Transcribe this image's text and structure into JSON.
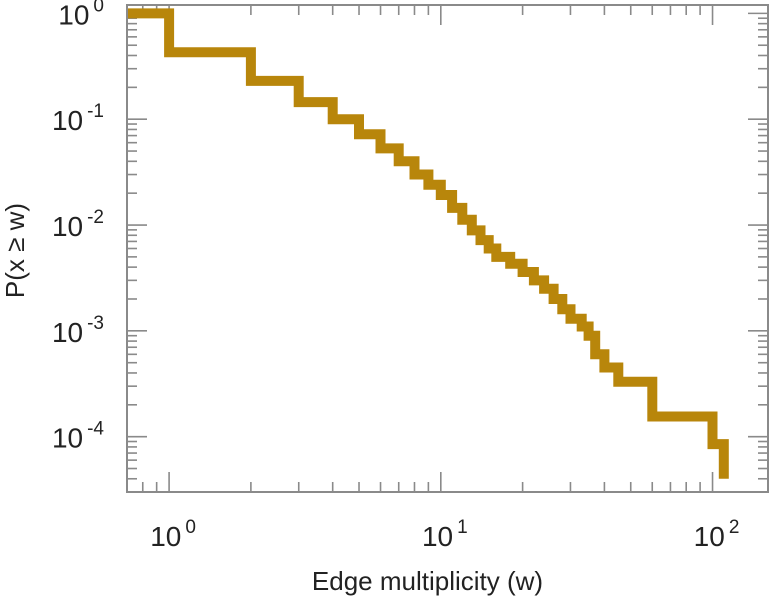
{
  "chart_data": {
    "type": "line",
    "step": true,
    "xlabel": "Edge multiplicity (w)",
    "ylabel": "P(x ≥ w)",
    "xscale": "log",
    "yscale": "log",
    "xlim": [
      0.7,
      160
    ],
    "ylim": [
      3e-05,
      1.2
    ],
    "grid": false,
    "legend": "none",
    "x_ticks": [
      {
        "value": 1,
        "base": "10",
        "exp": "0"
      },
      {
        "value": 10,
        "base": "10",
        "exp": "1"
      },
      {
        "value": 100,
        "base": "10",
        "exp": "2"
      }
    ],
    "y_ticks": [
      {
        "value": 1,
        "base": "10",
        "exp": "0"
      },
      {
        "value": 0.1,
        "base": "10",
        "exp": "-1"
      },
      {
        "value": 0.01,
        "base": "10",
        "exp": "-2"
      },
      {
        "value": 0.001,
        "base": "10",
        "exp": "-3"
      },
      {
        "value": 0.0001,
        "base": "10",
        "exp": "-4"
      }
    ],
    "series": [
      {
        "color": "#b8860b",
        "x": [
          0.7,
          1,
          2,
          3,
          4,
          5,
          6,
          7,
          8,
          9,
          10,
          11,
          12,
          13,
          14,
          15,
          16,
          18,
          20,
          22,
          24,
          26,
          28,
          30,
          33,
          35,
          37,
          40,
          45,
          60,
          95,
          100,
          110
        ],
        "y": [
          1.0,
          0.43,
          0.23,
          0.145,
          0.1,
          0.072,
          0.053,
          0.04,
          0.03,
          0.024,
          0.0192,
          0.0145,
          0.0112,
          0.0089,
          0.0072,
          0.006,
          0.005,
          0.0043,
          0.0036,
          0.003,
          0.0025,
          0.002,
          0.0016,
          0.0013,
          0.0011,
          0.0009,
          0.0006,
          0.00045,
          0.00033,
          0.000155,
          0.000155,
          8.5e-05,
          4e-05
        ]
      }
    ]
  }
}
